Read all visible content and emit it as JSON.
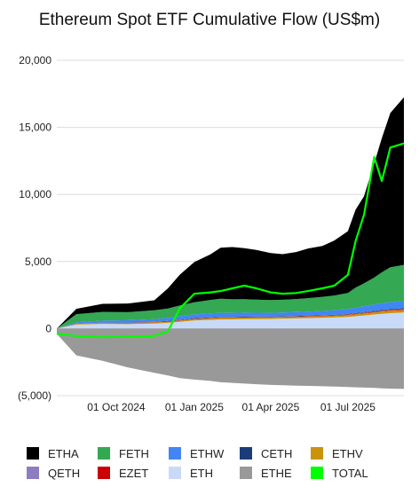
{
  "chart_data": {
    "type": "area",
    "title": "Ethereum Spot ETF Cumulative Flow (US$m)",
    "xlabel": "",
    "ylabel": "",
    "ylim": [
      -5000,
      20000
    ],
    "yticks": [
      -5000,
      0,
      5000,
      10000,
      15000,
      20000
    ],
    "ytick_labels": [
      "(5,000)",
      "0",
      "5,000",
      "10,000",
      "15,000",
      "20,000"
    ],
    "xlim": [
      "2024-07-23",
      "2025-09-05"
    ],
    "xticks": [
      "2024-10-01",
      "2025-01-01",
      "2025-04-01",
      "2025-07-01"
    ],
    "xtick_labels": [
      "01 Oct 2024",
      "01 Jan 2025",
      "01 Apr 2025",
      "01 Jul 2025"
    ],
    "grid": true,
    "legend_position": "bottom",
    "dates": [
      "2024-07-23",
      "2024-08-15",
      "2024-09-15",
      "2024-10-15",
      "2024-11-15",
      "2024-12-01",
      "2024-12-15",
      "2025-01-01",
      "2025-01-20",
      "2025-02-01",
      "2025-02-15",
      "2025-03-01",
      "2025-03-15",
      "2025-04-01",
      "2025-04-15",
      "2025-05-01",
      "2025-05-15",
      "2025-06-01",
      "2025-06-15",
      "2025-07-01",
      "2025-07-10",
      "2025-07-20",
      "2025-08-01",
      "2025-08-10",
      "2025-08-20",
      "2025-09-05"
    ],
    "series": [
      {
        "name": "ETHA",
        "color": "#000000",
        "values": [
          0,
          400,
          600,
          650,
          750,
          1500,
          2300,
          3000,
          3400,
          3800,
          3900,
          3800,
          3700,
          3500,
          3400,
          3500,
          3700,
          3800,
          4100,
          4600,
          5800,
          6500,
          8500,
          10000,
          11500,
          12500
        ]
      },
      {
        "name": "FETH",
        "color": "#34a853",
        "values": [
          0,
          600,
          650,
          600,
          650,
          700,
          800,
          900,
          1000,
          1050,
          1000,
          1000,
          980,
          950,
          950,
          970,
          1000,
          1050,
          1100,
          1200,
          1500,
          1700,
          2000,
          2300,
          2600,
          2700
        ]
      },
      {
        "name": "ETHW",
        "color": "#4285f4",
        "values": [
          0,
          100,
          150,
          180,
          200,
          230,
          260,
          280,
          300,
          310,
          300,
          300,
          290,
          280,
          280,
          290,
          300,
          320,
          340,
          370,
          400,
          440,
          480,
          500,
          520,
          530
        ]
      },
      {
        "name": "CETH",
        "color": "#1a3d7a",
        "values": [
          0,
          10,
          15,
          20,
          20,
          25,
          25,
          30,
          30,
          30,
          30,
          30,
          30,
          30,
          30,
          30,
          30,
          30,
          30,
          35,
          35,
          40,
          40,
          45,
          45,
          50
        ]
      },
      {
        "name": "ETHV",
        "color": "#c9930c",
        "values": [
          0,
          50,
          60,
          70,
          80,
          90,
          100,
          110,
          115,
          120,
          120,
          120,
          115,
          110,
          110,
          115,
          120,
          125,
          130,
          140,
          150,
          160,
          170,
          180,
          190,
          200
        ]
      },
      {
        "name": "QETH",
        "color": "#8e7cc3",
        "values": [
          0,
          5,
          5,
          5,
          10,
          10,
          10,
          10,
          10,
          10,
          10,
          10,
          10,
          10,
          10,
          10,
          10,
          10,
          10,
          10,
          15,
          15,
          20,
          20,
          20,
          20
        ]
      },
      {
        "name": "EZET",
        "color": "#cc0000",
        "values": [
          0,
          10,
          15,
          20,
          20,
          25,
          25,
          30,
          30,
          30,
          30,
          30,
          30,
          30,
          30,
          30,
          30,
          30,
          30,
          35,
          35,
          40,
          40,
          45,
          45,
          50
        ]
      },
      {
        "name": "ETH",
        "color": "#c9daf8",
        "values": [
          0,
          300,
          350,
          330,
          380,
          420,
          500,
          600,
          650,
          680,
          690,
          700,
          710,
          720,
          740,
          760,
          780,
          800,
          830,
          870,
          920,
          980,
          1050,
          1100,
          1150,
          1200
        ]
      },
      {
        "name": "ETHE",
        "color": "#999999",
        "values": [
          -400,
          -2000,
          -2400,
          -2900,
          -3300,
          -3500,
          -3700,
          -3800,
          -3900,
          -4000,
          -4050,
          -4100,
          -4150,
          -4200,
          -4220,
          -4250,
          -4270,
          -4300,
          -4320,
          -4350,
          -4380,
          -4400,
          -4420,
          -4450,
          -4480,
          -4500
        ]
      },
      {
        "name": "TOTAL",
        "color": "#00ff00",
        "values": [
          -400,
          -550,
          -650,
          -600,
          -550,
          -200,
          1500,
          2600,
          2700,
          2800,
          3000,
          3200,
          3000,
          2700,
          2600,
          2650,
          2800,
          3000,
          3200,
          4000,
          6500,
          8500,
          12800,
          11000,
          13500,
          13800
        ]
      }
    ]
  }
}
